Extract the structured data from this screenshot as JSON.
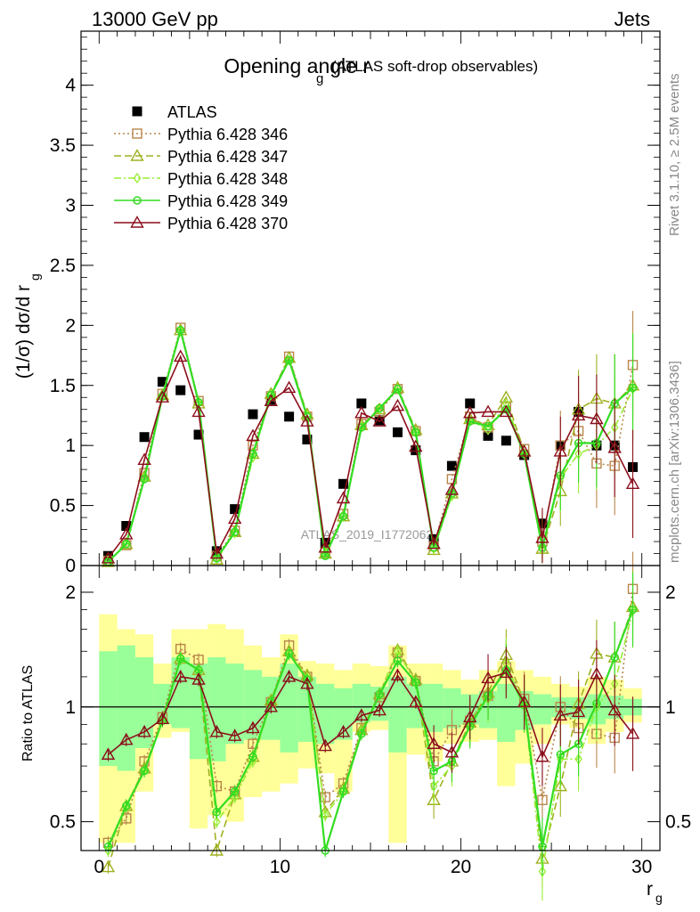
{
  "header": {
    "left": "13000 GeV pp",
    "right": "Jets",
    "side_top": "Rivet 3.1.10, ≥ 2.5M events",
    "side_bottom": "mcplots.cern.ch [arXiv:1306.3436]",
    "watermark": "ATLAS_2019_I1772062"
  },
  "colors": {
    "ATLAS": "#000000",
    "p346": "#b8864b",
    "p347": "#a0b020",
    "p348": "#99ee33",
    "p349": "#33dd22",
    "p370": "#8b0f1c",
    "band_outer": "#ffff99",
    "band_inner": "#99ff99"
  },
  "chart_data": [
    {
      "type": "scatter",
      "panel": "main",
      "title": "Opening angle r",
      "title_sub": "g",
      "title_note": "(ATLAS soft-drop observables)",
      "ylabel": "(1/σ) dσ/d r",
      "ylabel_sub": "g",
      "xlim": [
        -1,
        31
      ],
      "ylim": [
        0,
        4.45
      ],
      "yticks": [
        0,
        0.5,
        1,
        1.5,
        2,
        2.5,
        3,
        3.5,
        4
      ],
      "ytick_labels": [
        "0",
        "0.5",
        "1",
        "1.5",
        "2",
        "2.5",
        "3",
        "3.5",
        "4"
      ],
      "legend_position": "top-left",
      "x": [
        0.5,
        1.5,
        2.5,
        3.5,
        4.5,
        5.5,
        6.5,
        7.5,
        8.5,
        9.5,
        10.5,
        11.5,
        12.5,
        13.5,
        14.5,
        15.5,
        16.5,
        17.5,
        18.5,
        19.5,
        20.5,
        21.5,
        22.5,
        23.5,
        24.5,
        25.5,
        26.5,
        27.5,
        28.5,
        29.5
      ],
      "series": [
        {
          "name": "ATLAS",
          "key": "ATLAS",
          "marker": "square",
          "line": "none",
          "values": [
            0.08,
            0.33,
            1.07,
            1.53,
            1.46,
            1.09,
            0.12,
            0.47,
            1.26,
            1.38,
            1.24,
            1.05,
            0.19,
            0.68,
            1.35,
            1.21,
            1.11,
            0.96,
            0.22,
            0.83,
            1.35,
            1.08,
            1.04,
            0.92,
            0.35,
            1.0,
            1.28,
            1.0,
            1.0,
            0.82
          ]
        },
        {
          "name": "Pythia 6.428 346",
          "key": "p346",
          "marker": "open-square",
          "line": "dotted",
          "values": [
            0.04,
            0.17,
            0.77,
            1.43,
            1.98,
            1.37,
            0.08,
            0.29,
            1.0,
            1.41,
            1.74,
            1.24,
            0.11,
            0.43,
            1.18,
            1.28,
            1.47,
            1.12,
            0.16,
            0.72,
            1.24,
            1.15,
            1.32,
            0.97,
            0.2,
            1.0,
            1.12,
            0.85,
            0.83,
            1.67
          ]
        },
        {
          "name": "Pythia 6.428 347",
          "key": "p347",
          "marker": "open-triangle",
          "line": "dashed",
          "values": [
            0.03,
            0.18,
            0.74,
            1.42,
            1.96,
            1.35,
            0.05,
            0.28,
            0.93,
            1.43,
            1.73,
            1.26,
            0.1,
            0.41,
            1.17,
            1.3,
            1.48,
            1.13,
            0.13,
            0.6,
            1.22,
            1.17,
            1.4,
            0.95,
            0.14,
            0.62,
            1.3,
            1.39,
            1.35,
            1.5
          ]
        },
        {
          "name": "Pythia 6.428 348",
          "key": "p348",
          "marker": "open-diamond",
          "line": "dashdot",
          "values": [
            0.03,
            0.18,
            0.73,
            1.41,
            1.95,
            1.36,
            0.06,
            0.27,
            0.9,
            1.42,
            1.71,
            1.25,
            0.1,
            0.41,
            1.16,
            1.3,
            1.47,
            1.11,
            0.14,
            0.58,
            1.21,
            1.13,
            1.35,
            0.93,
            0.13,
            0.73,
            0.93,
            1.0,
            1.15,
            1.47
          ]
        },
        {
          "name": "Pythia 6.428 349",
          "key": "p349",
          "marker": "circle-cross",
          "line": "solid",
          "values": [
            0.03,
            0.18,
            0.72,
            1.41,
            1.96,
            1.36,
            0.06,
            0.28,
            0.93,
            1.42,
            1.71,
            1.24,
            0.08,
            0.41,
            1.15,
            1.31,
            1.47,
            1.11,
            0.15,
            0.6,
            1.2,
            1.16,
            1.3,
            0.93,
            0.15,
            0.75,
            1.02,
            1.02,
            1.35,
            1.48
          ]
        },
        {
          "name": "Pythia 6.428 370",
          "key": "p370",
          "marker": "open-triangle",
          "line": "solid",
          "values": [
            0.06,
            0.26,
            0.88,
            1.4,
            1.74,
            1.28,
            0.1,
            0.39,
            1.08,
            1.37,
            1.48,
            1.2,
            0.15,
            0.56,
            1.27,
            1.2,
            1.33,
            0.99,
            0.18,
            0.63,
            1.27,
            1.28,
            1.28,
            0.95,
            0.23,
            0.95,
            1.25,
            1.22,
            0.98,
            0.68
          ]
        }
      ]
    },
    {
      "type": "line",
      "panel": "ratio",
      "xlabel": "r",
      "xlabel_sub": "g",
      "ylabel": "Ratio to ATLAS",
      "xlim": [
        -1,
        31
      ],
      "ylim": [
        0.42,
        2.35
      ],
      "log_y": true,
      "yticks": [
        0.5,
        1,
        2
      ],
      "ytick_labels": [
        "0.5",
        "1",
        "2"
      ],
      "xticks": [
        0,
        10,
        20,
        30
      ],
      "xtick_labels": [
        "0",
        "10",
        "20",
        "30"
      ],
      "reference_line": 1,
      "band_outer": [
        [
          0.44,
          1.75
        ],
        [
          0.44,
          1.6
        ],
        [
          0.6,
          1.55
        ],
        [
          0.83,
          1.3
        ],
        [
          0.86,
          1.6
        ],
        [
          0.48,
          1.6
        ],
        [
          0.52,
          1.65
        ],
        [
          0.5,
          1.6
        ],
        [
          0.58,
          1.45
        ],
        [
          0.6,
          1.35
        ],
        [
          0.63,
          1.55
        ],
        [
          0.69,
          1.32
        ],
        [
          0.67,
          1.3
        ],
        [
          0.6,
          1.25
        ],
        [
          0.86,
          1.3
        ],
        [
          0.87,
          1.28
        ],
        [
          0.44,
          1.45
        ],
        [
          0.75,
          1.3
        ],
        [
          0.72,
          1.3
        ],
        [
          0.8,
          1.25
        ],
        [
          0.81,
          1.18
        ],
        [
          0.82,
          1.25
        ],
        [
          0.62,
          1.32
        ],
        [
          0.71,
          1.25
        ],
        [
          0.8,
          1.2
        ],
        [
          0.9,
          1.15
        ],
        [
          0.88,
          1.13
        ],
        [
          0.8,
          1.2
        ],
        [
          0.86,
          1.18
        ],
        [
          0.91,
          1.12
        ]
      ],
      "band_inner": [
        [
          0.7,
          1.4
        ],
        [
          0.68,
          1.45
        ],
        [
          0.78,
          1.35
        ],
        [
          0.9,
          1.15
        ],
        [
          0.88,
          1.35
        ],
        [
          0.73,
          1.3
        ],
        [
          0.72,
          1.35
        ],
        [
          0.8,
          1.3
        ],
        [
          0.82,
          1.25
        ],
        [
          0.82,
          1.2
        ],
        [
          0.76,
          1.3
        ],
        [
          0.81,
          1.2
        ],
        [
          0.8,
          1.15
        ],
        [
          0.82,
          1.12
        ],
        [
          0.91,
          1.15
        ],
        [
          0.92,
          1.13
        ],
        [
          0.76,
          1.2
        ],
        [
          0.88,
          1.15
        ],
        [
          0.86,
          1.15
        ],
        [
          0.88,
          1.12
        ],
        [
          0.9,
          1.08
        ],
        [
          0.88,
          1.1
        ],
        [
          0.81,
          1.15
        ],
        [
          0.87,
          1.1
        ],
        [
          0.9,
          1.08
        ],
        [
          0.94,
          1.06
        ],
        [
          0.93,
          1.06
        ],
        [
          0.9,
          1.08
        ],
        [
          0.93,
          1.07
        ],
        [
          0.95,
          1.05
        ]
      ],
      "series": [
        {
          "name": "Pythia 6.428 346",
          "key": "p346",
          "values": [
            0.44,
            0.51,
            0.72,
            0.94,
            1.42,
            1.33,
            0.62,
            0.6,
            0.8,
            1.03,
            1.45,
            1.2,
            0.58,
            0.63,
            0.88,
            1.06,
            1.39,
            1.17,
            0.72,
            0.87,
            0.92,
            1.07,
            1.27,
            1.05,
            0.57,
            1.0,
            0.88,
            0.85,
            0.83,
            2.04
          ]
        },
        {
          "name": "Pythia 6.428 347",
          "key": "p347",
          "values": [
            0.38,
            0.55,
            0.69,
            0.93,
            1.34,
            1.25,
            0.42,
            0.59,
            0.74,
            1.04,
            1.4,
            1.21,
            0.53,
            0.61,
            0.87,
            1.08,
            1.41,
            1.18,
            0.57,
            0.72,
            0.91,
            1.09,
            1.37,
            1.03,
            0.4,
            0.62,
            1.02,
            1.38,
            1.35,
            1.83
          ]
        },
        {
          "name": "Pythia 6.428 348",
          "key": "p348",
          "values": [
            0.42,
            0.55,
            0.68,
            0.92,
            1.34,
            1.25,
            0.5,
            0.58,
            0.72,
            1.03,
            1.38,
            1.19,
            0.52,
            0.6,
            0.86,
            1.08,
            1.4,
            1.16,
            0.62,
            0.7,
            0.9,
            1.05,
            1.3,
            1.01,
            0.37,
            0.73,
            0.73,
            1.0,
            1.15,
            1.79
          ]
        },
        {
          "name": "Pythia 6.428 349",
          "key": "p349",
          "values": [
            0.43,
            0.55,
            0.68,
            0.92,
            1.34,
            1.25,
            0.53,
            0.6,
            0.74,
            1.03,
            1.38,
            1.18,
            0.42,
            0.6,
            0.85,
            1.08,
            1.32,
            1.16,
            0.68,
            0.72,
            0.89,
            1.07,
            1.25,
            1.01,
            0.43,
            0.75,
            0.8,
            1.02,
            1.35,
            1.8
          ]
        },
        {
          "name": "Pythia 6.428 370",
          "key": "p370",
          "values": [
            0.75,
            0.82,
            0.86,
            0.93,
            1.2,
            1.18,
            0.86,
            0.84,
            0.88,
            1.0,
            1.2,
            1.15,
            0.79,
            0.86,
            0.95,
            0.98,
            1.21,
            1.03,
            0.8,
            0.76,
            0.94,
            1.19,
            1.23,
            1.03,
            0.74,
            0.95,
            0.97,
            1.22,
            0.98,
            0.85
          ]
        }
      ]
    }
  ]
}
